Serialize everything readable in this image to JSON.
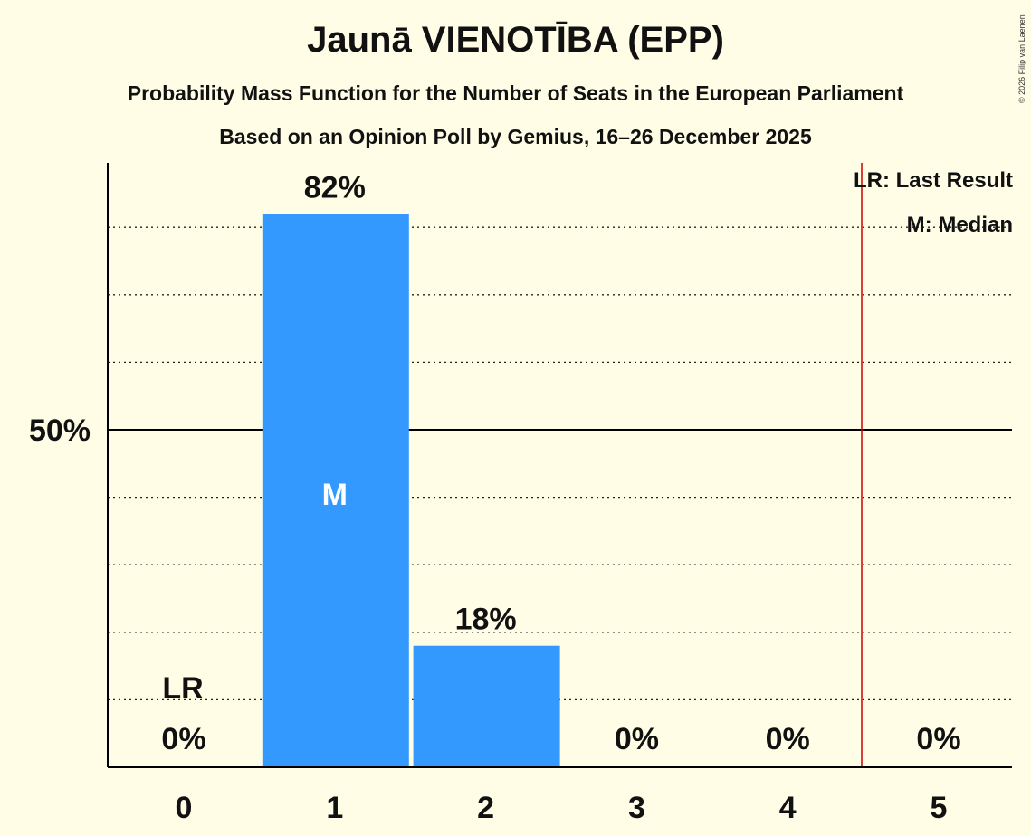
{
  "title": "Jaunā VIENOTĪBA (EPP)",
  "subtitle": "Probability Mass Function for the Number of Seats in the European Parliament",
  "subtitle2": "Based on an Opinion Poll by Gemius, 16–26 December 2025",
  "copyright": "© 2026 Filip van Laenen",
  "legend": {
    "lr": "LR: Last Result",
    "median": "M: Median"
  },
  "colors": {
    "bar": "#3399ff",
    "background": "#fffde6",
    "last_result_line": "#cc0000"
  },
  "chart_data": {
    "type": "bar",
    "categories": [
      "0",
      "1",
      "2",
      "3",
      "4",
      "5"
    ],
    "values": [
      0,
      82,
      18,
      0,
      0,
      0
    ],
    "value_labels": [
      "0%",
      "82%",
      "18%",
      "0%",
      "0%",
      "0%"
    ],
    "ylim": [
      0,
      90
    ],
    "y_ticks": [
      {
        "value": 50,
        "label": "50%"
      }
    ],
    "gridlines": [
      10,
      20,
      30,
      40,
      60,
      70,
      80
    ],
    "median_seat": "1",
    "median_label": "M",
    "last_result_seat": "0",
    "last_result_label": "LR",
    "last_result_line_at": 4.5
  }
}
